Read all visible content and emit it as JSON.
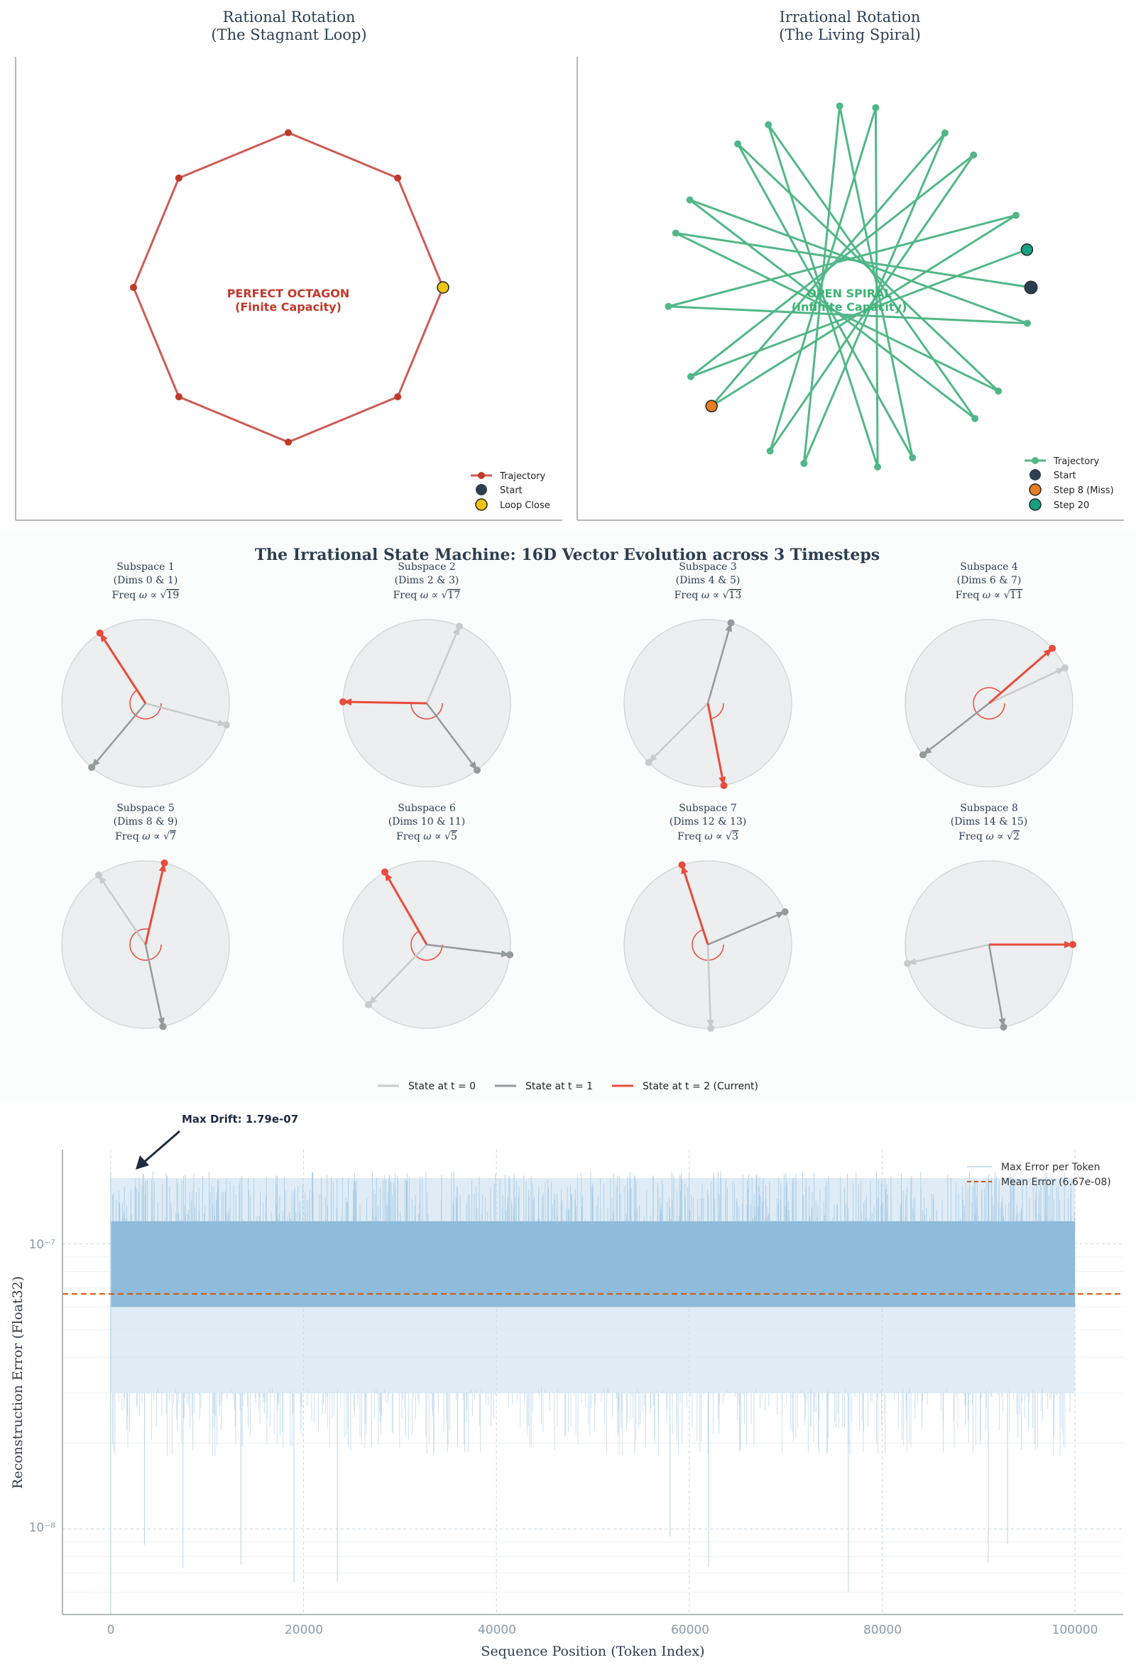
{
  "colors": {
    "rational": "#c0392b",
    "rational_line": "#cd5c55",
    "irrational": "#52b788",
    "irrational_text": "#3bb273",
    "start": "#2c3e50",
    "loop_close": "#f1c40f",
    "miss": "#e67e22",
    "step20": "#16a085",
    "t0": "#c8cbcc",
    "t1": "#959a9c",
    "t2": "#e74c3c",
    "error_fill": "#8fbcdb",
    "mean_line": "#d35400",
    "disc": "#eceeef"
  },
  "top_charts": [
    {
      "title_line1": "Rational Rotation",
      "title_line2": "(The Stagnant Loop)",
      "center_label_1": "PERFECT OCTAGON",
      "center_label_2": "(Finite Capacity)",
      "legend": [
        "Trajectory",
        "Start",
        "Loop Close"
      ]
    },
    {
      "title_line1": "Irrational Rotation",
      "title_line2": "(The Living Spiral)",
      "center_label_1": "OPEN SPIRAL",
      "center_label_2": "(Infinite Capacity)",
      "legend": [
        "Trajectory",
        "Start",
        "Step 8 (Miss)",
        "Step 20"
      ]
    }
  ],
  "middle": {
    "title": "The Irrational State Machine: 16D Vector Evolution across 3 Timesteps",
    "legend": [
      "State at t = 0",
      "State at t = 1",
      "State at t = 2 (Current)"
    ]
  },
  "bottom": {
    "annotation": "Max Drift: 1.79e-07",
    "legend_max": "Max Error per Token",
    "legend_mean": "Mean Error (6.67e-08)",
    "xlabel": "Sequence Position (Token Index)",
    "ylabel": "Reconstruction Error (Float32)",
    "xticks": [
      "0",
      "20000",
      "40000",
      "60000",
      "80000",
      "100000"
    ],
    "yticks": [
      "10⁻⁷",
      "10⁻⁸"
    ]
  },
  "chart_data": [
    {
      "type": "line",
      "title": "Rational Rotation (The Stagnant Loop)",
      "series": [
        {
          "name": "Trajectory",
          "angles_deg": [
            0,
            45,
            90,
            135,
            180,
            225,
            270,
            315,
            360
          ]
        }
      ],
      "markers": [
        {
          "name": "Start",
          "angle_deg": 0
        },
        {
          "name": "Loop Close",
          "angle_deg": 360
        }
      ]
    },
    {
      "type": "line",
      "title": "Irrational Rotation (The Living Spiral)",
      "series": [
        {
          "name": "Trajectory",
          "steps": 21,
          "step_angle_deg": 162.6
        }
      ],
      "markers": [
        {
          "name": "Start",
          "step": 0
        },
        {
          "name": "Step 8 (Miss)",
          "step": 8
        },
        {
          "name": "Step 20",
          "step": 20
        }
      ]
    },
    {
      "type": "scatter",
      "title": "The Irrational State Machine: 16D Vector Evolution across 3 Timesteps",
      "subspaces": [
        {
          "name": "Subspace 1",
          "dims": "(Dims 0 & 1)",
          "freq": "19",
          "t0": -15,
          "t1": -130,
          "t2": 123
        },
        {
          "name": "Subspace 2",
          "dims": "(Dims 2 & 3)",
          "freq": "17",
          "t0": 67,
          "t1": -53,
          "t2": 179
        },
        {
          "name": "Subspace 3",
          "dims": "(Dims 4 & 5)",
          "freq": "13",
          "t0": -135,
          "t1": 74,
          "t2": -79
        },
        {
          "name": "Subspace 4",
          "dims": "(Dims 6 & 7)",
          "freq": "11",
          "t0": 25,
          "t1": -142,
          "t2": 41
        },
        {
          "name": "Subspace 5",
          "dims": "(Dims 8 & 9)",
          "freq": "7",
          "t0": 124,
          "t1": -78,
          "t2": 77
        },
        {
          "name": "Subspace 6",
          "dims": "(Dims 10 & 11)",
          "freq": "5",
          "t0": -134,
          "t1": -7,
          "t2": 120
        },
        {
          "name": "Subspace 7",
          "dims": "(Dims 12 & 13)",
          "freq": "3",
          "t0": -88,
          "t1": 23,
          "t2": 108
        },
        {
          "name": "Subspace 8",
          "dims": "(Dims 14 & 15)",
          "freq": "2",
          "t0": -167,
          "t1": -80,
          "t2": 0
        }
      ]
    },
    {
      "type": "area",
      "title": "Reconstruction Error per Token",
      "xlabel": "Sequence Position (Token Index)",
      "ylabel": "Reconstruction Error (Float32)",
      "xlim": [
        -5000,
        105000
      ],
      "ylim_log10": [
        -8.3,
        -6.67
      ],
      "band_low": 3e-08,
      "band_dense_low": 6e-08,
      "band_dense_high": 1.2e-07,
      "max": 1.79e-07,
      "mean": 6.67e-08,
      "n_tokens": 100000
    }
  ]
}
